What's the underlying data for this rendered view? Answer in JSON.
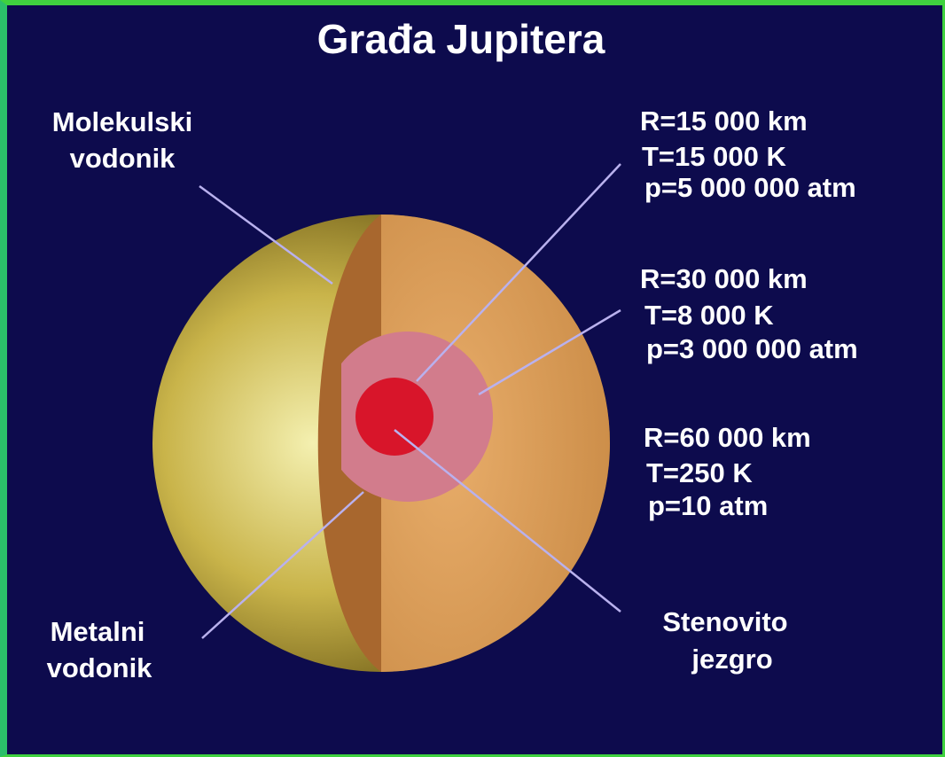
{
  "title": "Građa Jupitera",
  "layers": [
    {
      "label": [
        "Molekulski",
        "vodonik"
      ]
    },
    {
      "label": [
        "Metalni",
        "vodonik"
      ]
    },
    {
      "label": [
        "Stenovito",
        "jezgro"
      ]
    }
  ],
  "conditions": [
    [
      "R=15 000 km",
      "T=15 000 K",
      "p=5 000 000 atm"
    ],
    [
      "R=30 000 km",
      "T=8 000 K",
      "p=3 000 000 atm"
    ],
    [
      "R=60 000 km",
      "T=250 K",
      "p=10 atm"
    ]
  ]
}
